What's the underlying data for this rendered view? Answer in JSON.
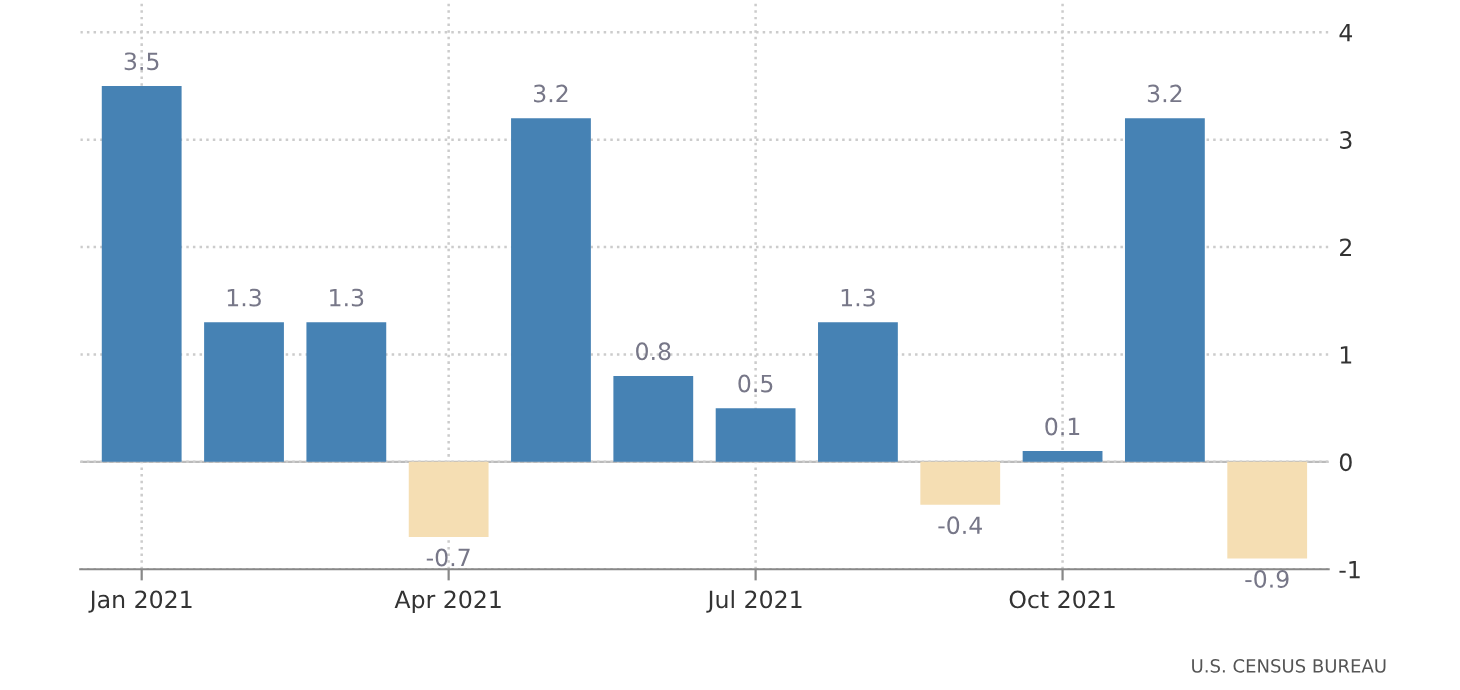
{
  "chart_data": {
    "type": "bar",
    "categories": [
      "Jan 2021",
      null,
      null,
      "Apr 2021",
      null,
      null,
      "Jul 2021",
      null,
      null,
      "Oct 2021",
      null,
      null
    ],
    "values": [
      3.5,
      1.3,
      1.3,
      -0.7,
      3.2,
      0.8,
      0.5,
      1.3,
      -0.4,
      0.1,
      3.2,
      -0.9
    ],
    "colors": [
      "#4682b4",
      "#4682b4",
      "#4682b4",
      "#f5deb3",
      "#4682b4",
      "#4682b4",
      "#4682b4",
      "#4682b4",
      "#f5deb3",
      "#4682b4",
      "#4682b4",
      "#f5deb3"
    ],
    "ylim": [
      -1,
      4.3
    ],
    "yticks": [
      -1,
      0,
      1,
      2,
      3,
      4
    ],
    "grid": true,
    "data_labels": true,
    "annotations": [
      "U.S. CENSUS BUREAU"
    ]
  }
}
